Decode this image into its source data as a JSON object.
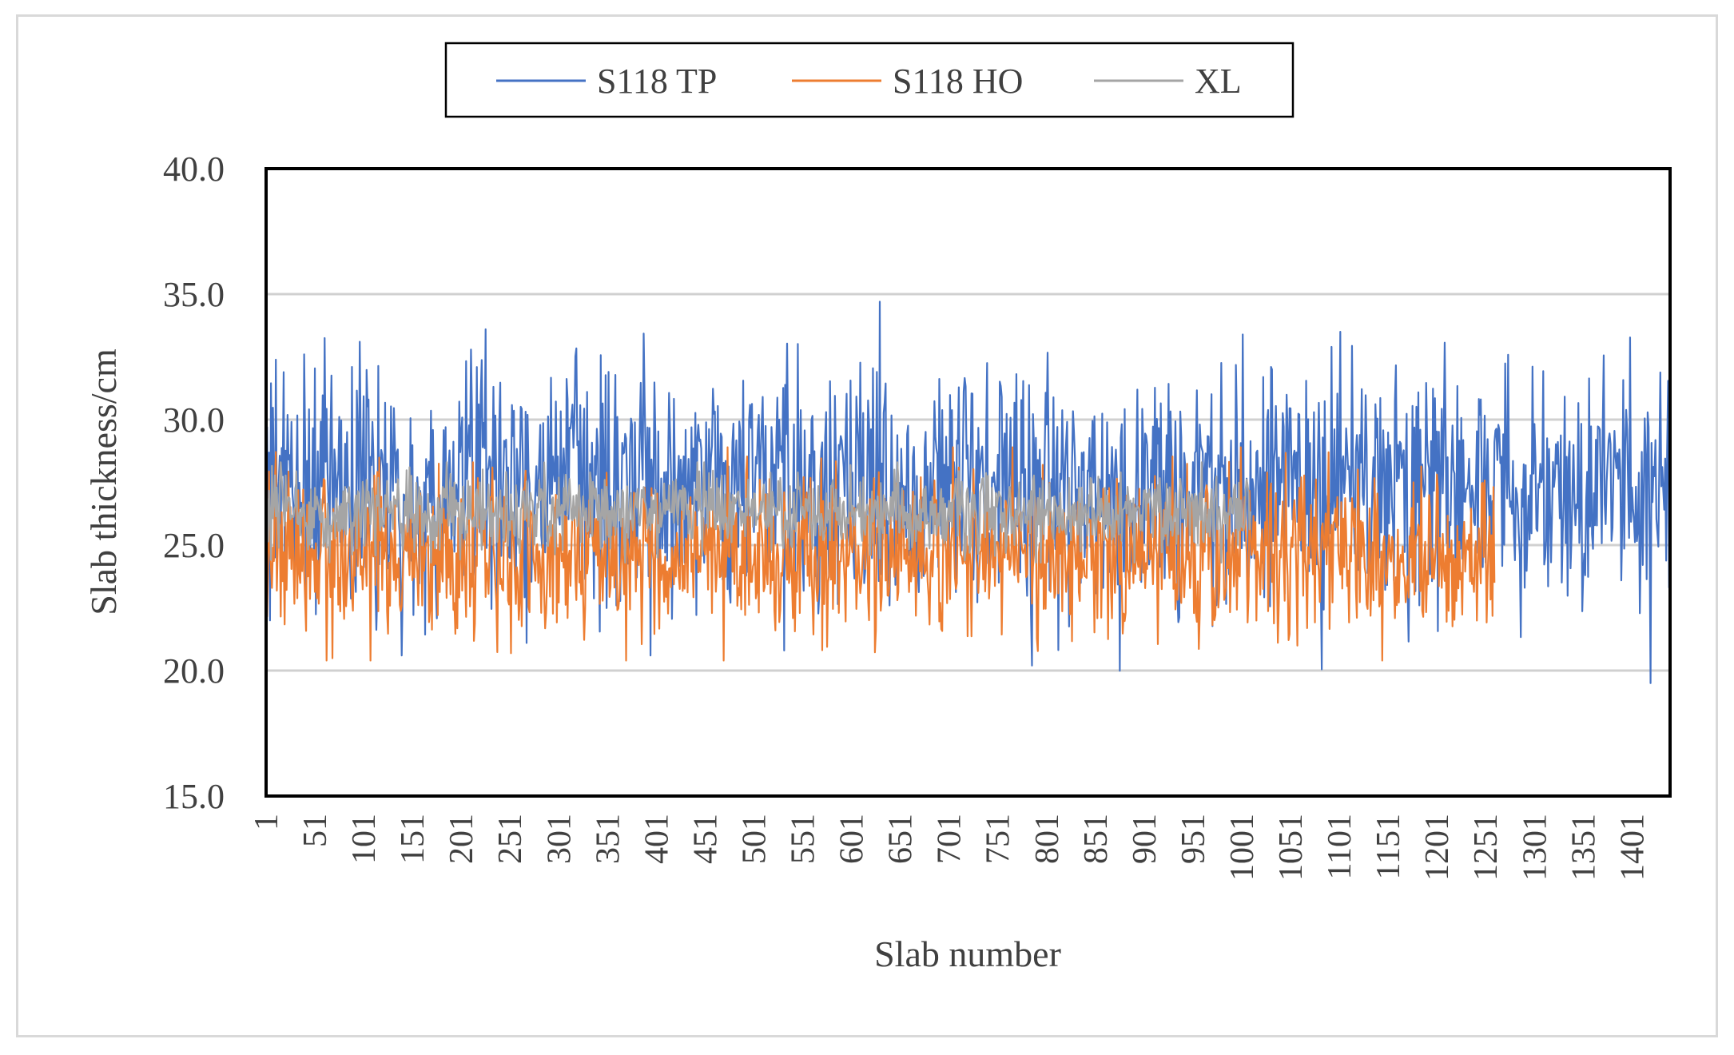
{
  "chart_data": {
    "type": "line",
    "title": "",
    "xlabel": "Slab number",
    "ylabel": "Slab thickness/cm",
    "ylim": [
      15.0,
      40.0
    ],
    "y_ticks": [
      "15.0",
      "20.0",
      "25.0",
      "30.0",
      "35.0",
      "40.0"
    ],
    "x_ticks": [
      "1",
      "51",
      "101",
      "151",
      "201",
      "251",
      "301",
      "351",
      "401",
      "451",
      "501",
      "551",
      "601",
      "651",
      "701",
      "751",
      "801",
      "851",
      "901",
      "951",
      "1001",
      "1051",
      "1101",
      "1151",
      "1201",
      "1251",
      "1301",
      "1351",
      "1401"
    ],
    "xlim": [
      1,
      1440
    ],
    "gridlines": "horizontal",
    "legend_position": "top",
    "series": [
      {
        "name": "S118 TP",
        "color": "#4472C4",
        "n_points": 1440,
        "approx_mean": 27.3,
        "approx_range": [
          19.5,
          34.7
        ],
        "notable_points": [
          {
            "x": 2,
            "y": 29.7
          },
          {
            "x": 5,
            "y": 22.0
          },
          {
            "x": 40,
            "y": 32.6
          },
          {
            "x": 97,
            "y": 33.1
          },
          {
            "x": 140,
            "y": 20.6
          },
          {
            "x": 226,
            "y": 33.6
          },
          {
            "x": 268,
            "y": 21.1
          },
          {
            "x": 352,
            "y": 31.9
          },
          {
            "x": 395,
            "y": 20.6
          },
          {
            "x": 630,
            "y": 34.7
          },
          {
            "x": 786,
            "y": 20.2
          },
          {
            "x": 1102,
            "y": 33.5
          },
          {
            "x": 1420,
            "y": 19.5
          },
          {
            "x": 1440,
            "y": 27.0
          }
        ]
      },
      {
        "name": "S118 HO",
        "color": "#ED7D31",
        "n_points": 1260,
        "approx_mean": 24.6,
        "approx_range": [
          20.4,
          28.9
        ],
        "notable_points": [
          {
            "x": 1,
            "y": 24.2
          },
          {
            "x": 213,
            "y": 28.3
          },
          {
            "x": 370,
            "y": 20.4
          },
          {
            "x": 470,
            "y": 20.4
          },
          {
            "x": 1000,
            "y": 28.9
          },
          {
            "x": 1090,
            "y": 28.7
          },
          {
            "x": 1145,
            "y": 20.4
          },
          {
            "x": 1260,
            "y": 23.5
          }
        ]
      },
      {
        "name": "XL",
        "color": "#A5A5A5",
        "n_points": 1010,
        "approx_mean": 26.3,
        "approx_range": [
          24.3,
          28.3
        ]
      }
    ]
  }
}
